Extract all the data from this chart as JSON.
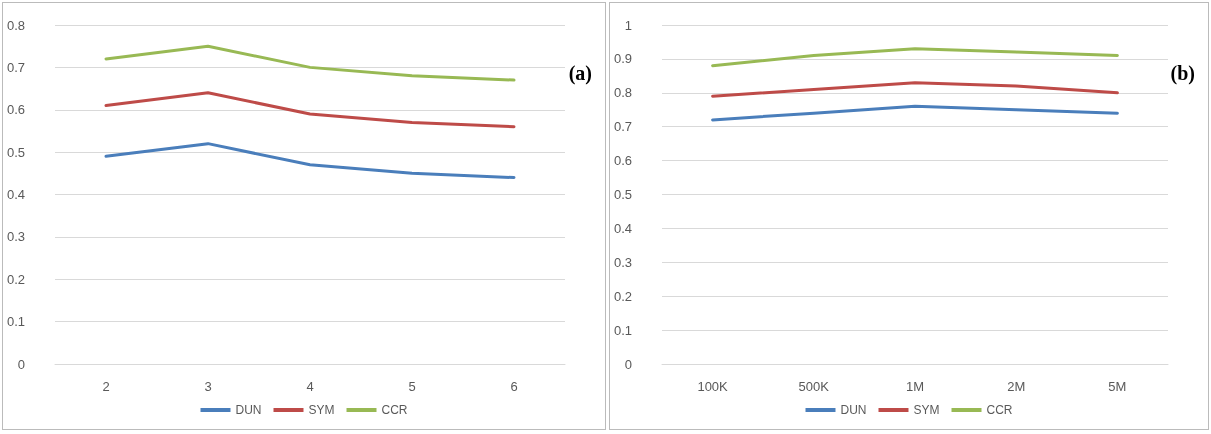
{
  "chart_data": [
    {
      "type": "line",
      "title": "(a)",
      "categories": [
        "2",
        "3",
        "4",
        "5",
        "6"
      ],
      "series": [
        {
          "name": "DUN",
          "color": "#4a7ebb",
          "values": [
            0.49,
            0.52,
            0.47,
            0.45,
            0.44
          ]
        },
        {
          "name": "SYM",
          "color": "#be4b48",
          "values": [
            0.61,
            0.64,
            0.59,
            0.57,
            0.56
          ]
        },
        {
          "name": "CCR",
          "color": "#98b954",
          "values": [
            0.72,
            0.75,
            0.7,
            0.68,
            0.67
          ]
        }
      ],
      "ylim": [
        0,
        0.8
      ],
      "yticks": [
        0,
        0.1,
        0.2,
        0.3,
        0.4,
        0.5,
        0.6,
        0.7,
        0.8
      ],
      "grid": "y",
      "legend": "bottom",
      "marker": "none",
      "line_style": "solid"
    },
    {
      "type": "line",
      "title": "(b)",
      "categories": [
        "100K",
        "500K",
        "1M",
        "2M",
        "5M"
      ],
      "series": [
        {
          "name": "DUN",
          "color": "#4a7ebb",
          "values": [
            0.72,
            0.74,
            0.76,
            0.75,
            0.74
          ]
        },
        {
          "name": "SYM",
          "color": "#be4b48",
          "values": [
            0.79,
            0.81,
            0.83,
            0.82,
            0.8
          ]
        },
        {
          "name": "CCR",
          "color": "#98b954",
          "values": [
            0.88,
            0.91,
            0.93,
            0.92,
            0.91
          ]
        }
      ],
      "ylim": [
        0,
        1
      ],
      "yticks": [
        0,
        0.1,
        0.2,
        0.3,
        0.4,
        0.5,
        0.6,
        0.7,
        0.8,
        0.9,
        1
      ],
      "grid": "y",
      "legend": "bottom",
      "marker": "none",
      "line_style": "solid"
    }
  ]
}
